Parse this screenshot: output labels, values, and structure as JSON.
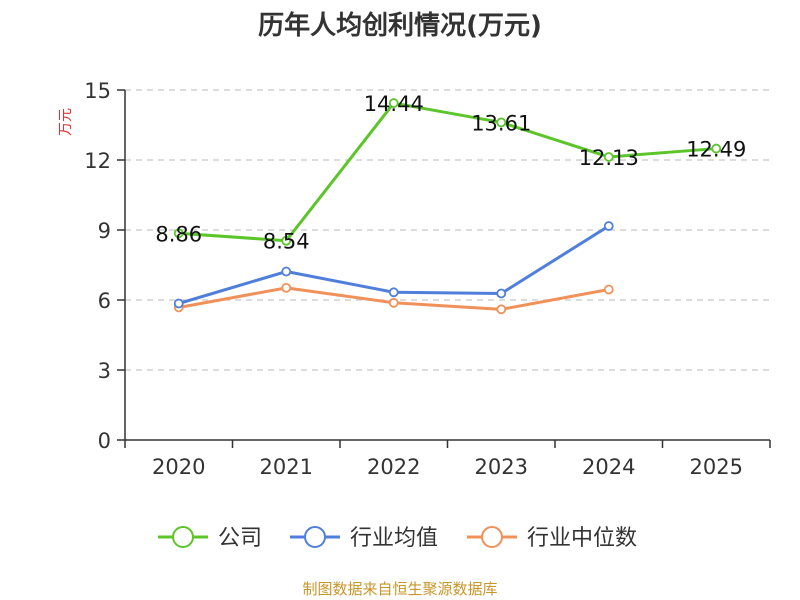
{
  "chart_data": {
    "type": "line",
    "title": "历年人均创利情况(万元)",
    "ylabel": "万元",
    "xlabel": "",
    "categories": [
      "2020",
      "2021",
      "2022",
      "2023",
      "2024",
      "2025"
    ],
    "ylim": [
      0,
      15
    ],
    "yticks": [
      "0",
      "3",
      "6",
      "9",
      "12",
      "15"
    ],
    "grid": true,
    "legend_position": "bottom",
    "series": [
      {
        "name": "公司",
        "color": "#5cc52a",
        "values": [
          8.86,
          8.54,
          14.44,
          13.61,
          12.13,
          12.49
        ],
        "labels": [
          "8.86",
          "8.54",
          "14.44",
          "13.61",
          "12.13",
          "12.49"
        ]
      },
      {
        "name": "行业均值",
        "color": "#4f7fdb",
        "values": [
          5.85,
          7.22,
          6.33,
          6.28,
          9.17,
          null
        ]
      },
      {
        "name": "行业中位数",
        "color": "#f0915a",
        "values": [
          5.68,
          6.52,
          5.88,
          5.6,
          6.45,
          null
        ]
      }
    ],
    "source": "制图数据来自恒生聚源数据库"
  }
}
